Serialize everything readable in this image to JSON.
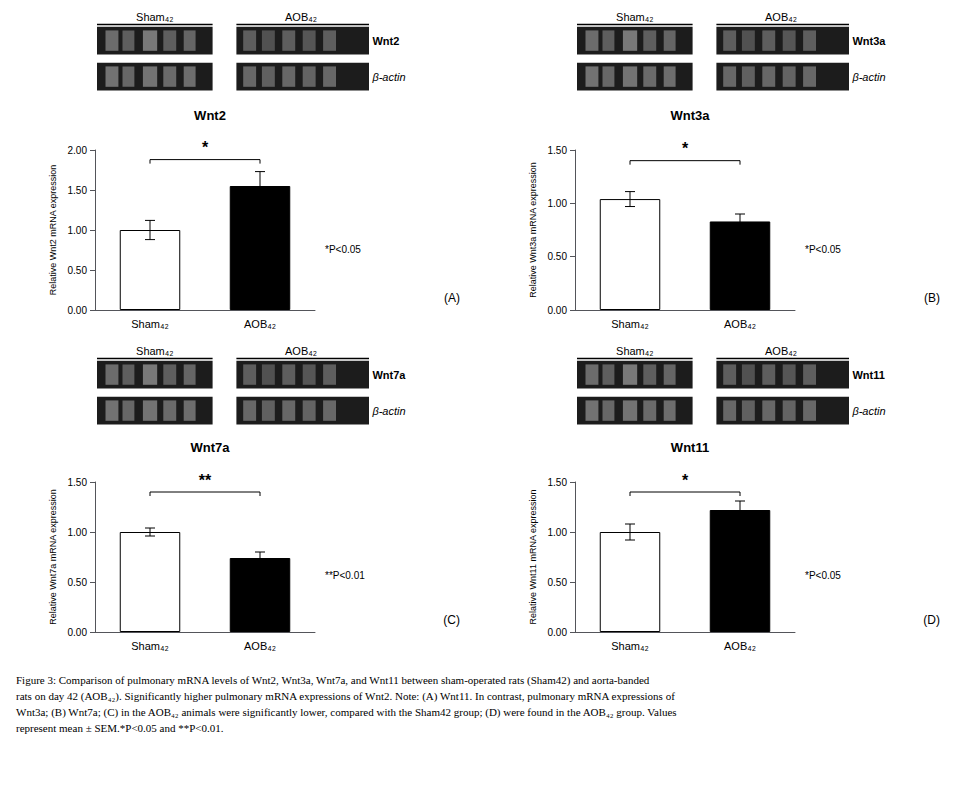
{
  "chart_data": [
    {
      "type": "bar",
      "title": "Wnt2",
      "y_label": "Relative Wnt2 mRNA expression",
      "categories": [
        "Sham₄₂",
        "AOB₄₂"
      ],
      "values": [
        1.0,
        1.55
      ],
      "errors": [
        0.12,
        0.18
      ],
      "colors": [
        "white",
        "black"
      ],
      "ylim": [
        0,
        2.0
      ],
      "yticks": [
        {
          "value": 0.0,
          "label": "0.00"
        },
        {
          "value": 0.5,
          "label": "0.50"
        },
        {
          "value": 1.0,
          "label": "1.00"
        },
        {
          "value": 1.5,
          "label": "1.50"
        },
        {
          "value": 2.0,
          "label": "2.00"
        }
      ],
      "grid": false,
      "significance": {
        "label": "*",
        "y": 1.88,
        "label_y": 1.93
      },
      "annotations": [
        "*P<0.05",
        "(A)"
      ],
      "gel": {
        "lanes": [
          "Sham₄₂",
          "AOB₄₂"
        ],
        "rows": [
          "Wnt2",
          "β-actin"
        ]
      }
    },
    {
      "type": "bar",
      "title": "Wnt3a",
      "y_label": "Relative Wnt3a mRNA expression",
      "categories": [
        "Sham₄₂",
        "AOB₄₂"
      ],
      "values": [
        1.04,
        0.83
      ],
      "errors": [
        0.07,
        0.07
      ],
      "colors": [
        "white",
        "black"
      ],
      "ylim": [
        0,
        1.5
      ],
      "yticks": [
        {
          "value": 0.0,
          "label": "0.00"
        },
        {
          "value": 0.5,
          "label": "0.50"
        },
        {
          "value": 1.0,
          "label": "1.00"
        },
        {
          "value": 1.5,
          "label": "1.50"
        }
      ],
      "grid": false,
      "significance": {
        "label": "*",
        "y": 1.4,
        "label_y": 1.44
      },
      "annotations": [
        "*P<0.05",
        "(B)"
      ],
      "gel": {
        "lanes": [
          "Sham₄₂",
          "AOB₄₂"
        ],
        "rows": [
          "Wnt3a",
          "β-actin"
        ]
      }
    },
    {
      "type": "bar",
      "title": "Wnt7a",
      "y_label": "Relative Wnt7a mRNA expression",
      "categories": [
        "Sham₄₂",
        "AOB₄₂"
      ],
      "values": [
        1.0,
        0.74
      ],
      "errors": [
        0.04,
        0.06
      ],
      "colors": [
        "white",
        "black"
      ],
      "ylim": [
        0,
        1.5
      ],
      "yticks": [
        {
          "value": 0.0,
          "label": "0.00"
        },
        {
          "value": 0.5,
          "label": "0.50"
        },
        {
          "value": 1.0,
          "label": "1.00"
        },
        {
          "value": 1.5,
          "label": "1.50"
        }
      ],
      "grid": false,
      "significance": {
        "label": "**",
        "y": 1.4,
        "label_y": 1.44
      },
      "annotations": [
        "**P<0.01",
        "(C)"
      ],
      "gel": {
        "lanes": [
          "Sham₄₂",
          "AOB₄₂"
        ],
        "rows": [
          "Wnt7a",
          "β-actin"
        ]
      }
    },
    {
      "type": "bar",
      "title": "Wnt11",
      "y_label": "Relative Wnt11 mRNA expression",
      "categories": [
        "Sham₄₂",
        "AOB₄₂"
      ],
      "values": [
        1.0,
        1.22
      ],
      "errors": [
        0.08,
        0.09
      ],
      "colors": [
        "white",
        "black"
      ],
      "ylim": [
        0,
        1.5
      ],
      "yticks": [
        {
          "value": 0.0,
          "label": "0.00"
        },
        {
          "value": 0.5,
          "label": "0.50"
        },
        {
          "value": 1.0,
          "label": "1.00"
        },
        {
          "value": 1.5,
          "label": "1.50"
        }
      ],
      "grid": false,
      "significance": {
        "label": "*",
        "y": 1.4,
        "label_y": 1.44
      },
      "annotations": [
        "*P<0.05",
        "(D)"
      ],
      "gel": {
        "lanes": [
          "Sham₄₂",
          "AOB₄₂"
        ],
        "rows": [
          "Wnt11",
          "β-actin"
        ]
      }
    }
  ],
  "caption": [
    "Figure 3: Comparison of pulmonary mRNA levels of Wnt2, Wnt3a, Wnt7a, and Wnt11 between sham-operated rats (Sham42) and aorta-banded",
    "rats on day 42 (AOB₄₂). Significantly higher pulmonary mRNA expressions of Wnt2. Note: (A) Wnt11. In contrast, pulmonary mRNA expressions of",
    "Wnt3a; (B) Wnt7a; (C) in the AOB₄₂ animals were significantly lower, compared with the Sham42 group; (D) were found in the AOB₄₂ group. Values",
    "represent mean ± SEM.*P<0.05 and **P<0.01."
  ]
}
